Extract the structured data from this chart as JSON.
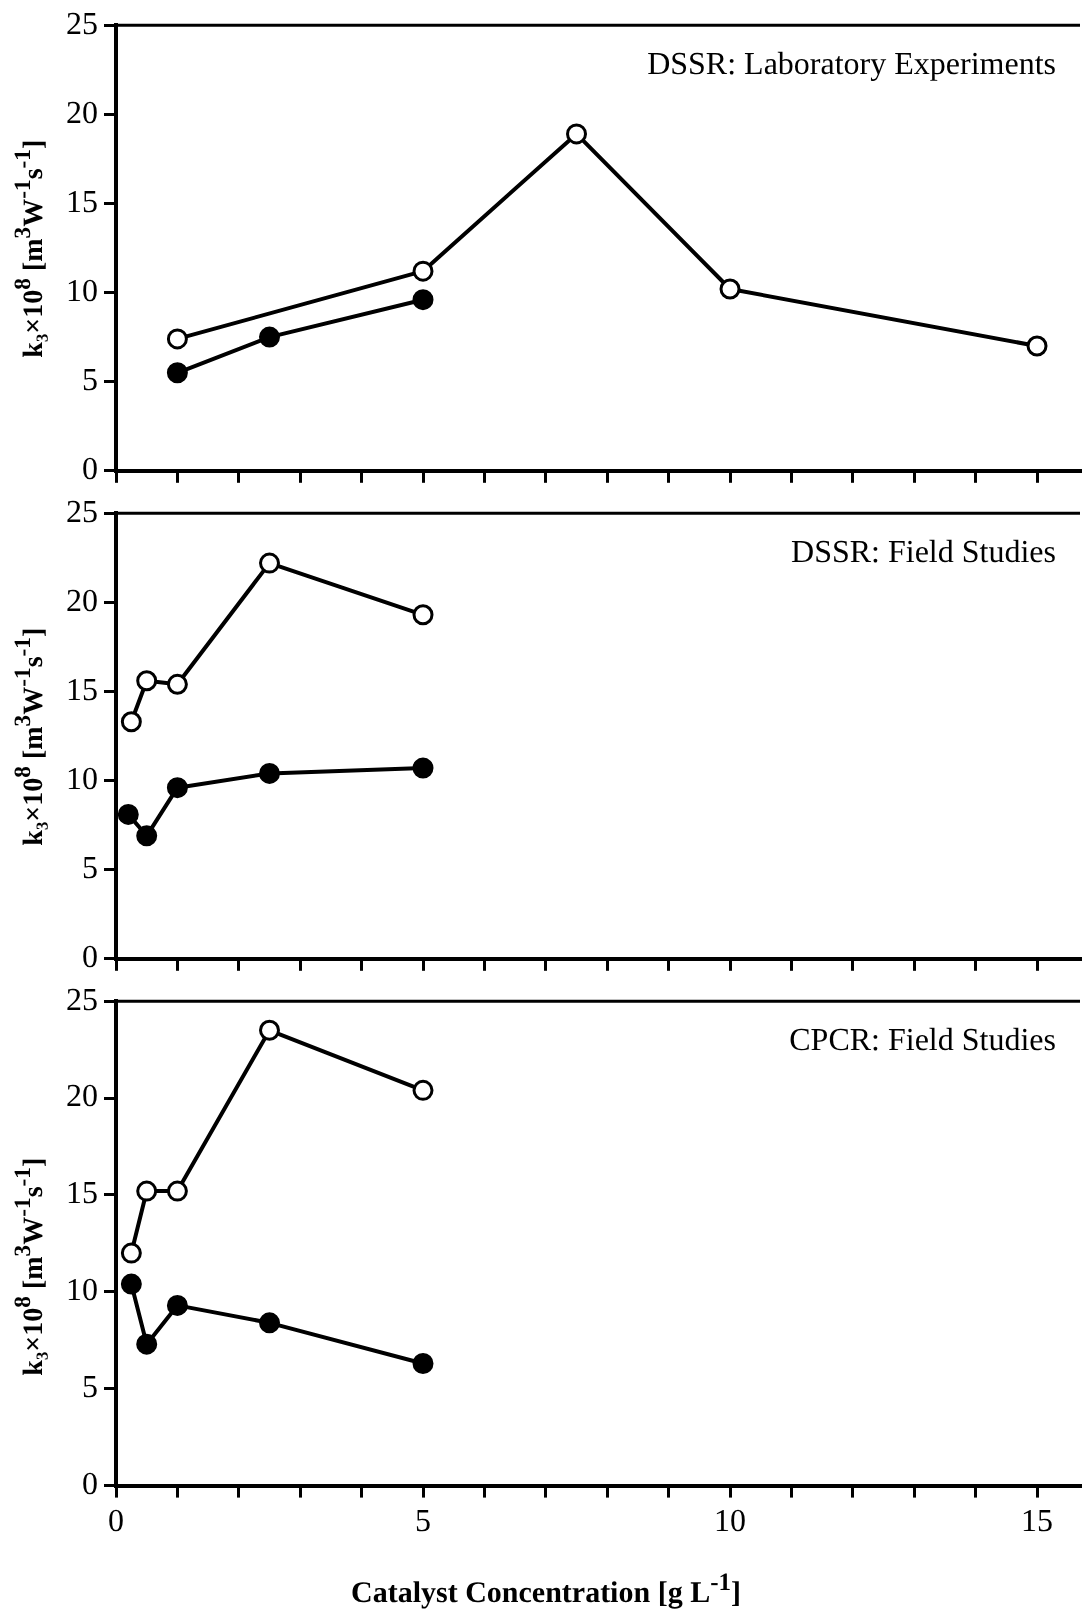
{
  "chart_data": [
    {
      "type": "line",
      "ylabel": "k₃×10$^{8}$ [m$^{3}$W$^{-1}$s$^{-1}$]",
      "annotations": [
        "DSSR: Laboratory Experiments"
      ],
      "marker": "circle",
      "tick_labels": "y",
      "xlim": [
        0,
        15.7
      ],
      "xticks": [
        0,
        {
          "value": 1,
          "label": null
        },
        {
          "value": 2,
          "label": null
        },
        {
          "value": 3,
          "label": null
        },
        {
          "value": 4,
          "label": null
        },
        5,
        {
          "value": 6,
          "label": null
        },
        {
          "value": 7,
          "label": null
        },
        {
          "value": 8,
          "label": null
        },
        {
          "value": 9,
          "label": null
        },
        10,
        {
          "value": 11,
          "label": null
        },
        {
          "value": 12,
          "label": null
        },
        {
          "value": 13,
          "label": null
        },
        {
          "value": 14,
          "label": null
        },
        15
      ],
      "ylim": [
        0,
        25
      ],
      "yticks": [
        0,
        5,
        10,
        15,
        20,
        25
      ],
      "series": [
        {
          "color": "#ffffff",
          "x": [
            1,
            5,
            7.5,
            10,
            15
          ],
          "values": [
            7.4,
            11.2,
            18.9,
            10.2,
            7.0
          ]
        },
        {
          "color": "#000000",
          "x": [
            1,
            2.5,
            5
          ],
          "values": [
            5.5,
            7.5,
            9.6
          ]
        }
      ]
    },
    {
      "type": "line",
      "ylabel": "k₃×10$^{8}$ [m$^{3}$W$^{-1}$s$^{-1}$]",
      "annotations": [
        "DSSR: Field Studies"
      ],
      "marker": "circle",
      "tick_labels": "y",
      "xlim": [
        0,
        15.7
      ],
      "xticks": [
        0,
        {
          "value": 1,
          "label": null
        },
        {
          "value": 2,
          "label": null
        },
        {
          "value": 3,
          "label": null
        },
        {
          "value": 4,
          "label": null
        },
        5,
        {
          "value": 6,
          "label": null
        },
        {
          "value": 7,
          "label": null
        },
        {
          "value": 8,
          "label": null
        },
        {
          "value": 9,
          "label": null
        },
        10,
        {
          "value": 11,
          "label": null
        },
        {
          "value": 12,
          "label": null
        },
        {
          "value": 13,
          "label": null
        },
        {
          "value": 14,
          "label": null
        },
        15
      ],
      "ylim": [
        0,
        25
      ],
      "yticks": [
        0,
        5,
        10,
        15,
        20,
        25
      ],
      "series": [
        {
          "color": "#ffffff",
          "x": [
            0.25,
            0.5,
            1,
            2.5,
            5
          ],
          "values": [
            13.3,
            15.6,
            15.4,
            22.2,
            19.3
          ]
        },
        {
          "color": "#000000",
          "x": [
            0.2,
            0.5,
            1,
            2.5,
            5
          ],
          "values": [
            8.1,
            6.9,
            9.6,
            10.4,
            10.7
          ]
        }
      ]
    },
    {
      "type": "line",
      "ylabel": "k₃×10$^{8}$ [m$^{3}$W$^{-1}$s$^{-1}$]",
      "xlabel": "Catalyst Concentration [g L$^{-1}$]",
      "annotations": [
        "CPCR: Field Studies"
      ],
      "marker": "circle",
      "xlim": [
        0,
        15.7
      ],
      "xticks": [
        0,
        {
          "value": 1,
          "label": null
        },
        {
          "value": 2,
          "label": null
        },
        {
          "value": 3,
          "label": null
        },
        {
          "value": 4,
          "label": null
        },
        5,
        {
          "value": 6,
          "label": null
        },
        {
          "value": 7,
          "label": null
        },
        {
          "value": 8,
          "label": null
        },
        {
          "value": 9,
          "label": null
        },
        10,
        {
          "value": 11,
          "label": null
        },
        {
          "value": 12,
          "label": null
        },
        {
          "value": 13,
          "label": null
        },
        {
          "value": 14,
          "label": null
        },
        15
      ],
      "ylim": [
        0,
        25
      ],
      "yticks": [
        0,
        5,
        10,
        15,
        20,
        25
      ],
      "series": [
        {
          "color": "#ffffff",
          "x": [
            0.25,
            0.5,
            1,
            2.5,
            5
          ],
          "values": [
            12.0,
            15.2,
            15.2,
            23.5,
            20.4
          ]
        },
        {
          "color": "#000000",
          "x": [
            0.25,
            0.5,
            1,
            2.5,
            5
          ],
          "values": [
            10.4,
            7.3,
            9.3,
            8.4,
            6.3
          ]
        }
      ]
    }
  ]
}
